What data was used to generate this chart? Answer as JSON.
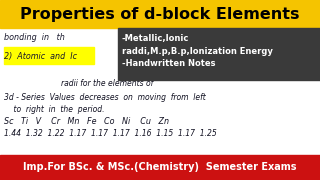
{
  "title": "Properties of d-block Elements",
  "title_bg": "#F5C400",
  "title_color": "#000000",
  "title_fontsize": 11.5,
  "body_bg": "#FFFFFF",
  "bullet_box_bg": "#3a3a3a",
  "bullet_box_color": "#FFFFFF",
  "bullet_lines": [
    "-Metallic,Ionic",
    "raddi,M.p,B.p,Ionization Energy",
    "-Handwritten Notes"
  ],
  "bullet_fontsize": 6.0,
  "highlight_color": "#FFFF00",
  "footer_bg": "#CC1111",
  "footer_color": "#FFFFFF",
  "footer_text": "Imp.For BSc. & MSc.(Chemistry)  Semester Exams",
  "footer_fontsize": 7.0,
  "line1": "bonding  in   th",
  "line2": "2)  Atomic  and  Ic",
  "body1": "                        radii for the elements of",
  "body2": "3d - Series  Values  decreases  on  moving  from  left",
  "body3": "    to  right  in  the  period.",
  "body4": "Sc   Ti   V    Cr   Mn   Fe   Co   Ni    Cu   Zn",
  "body5": "1.44  1.32  1.22  1.17  1.17  1.17  1.16  1.15  1.17  1.25",
  "body_fontsize": 5.5,
  "hand_fontsize": 5.8
}
